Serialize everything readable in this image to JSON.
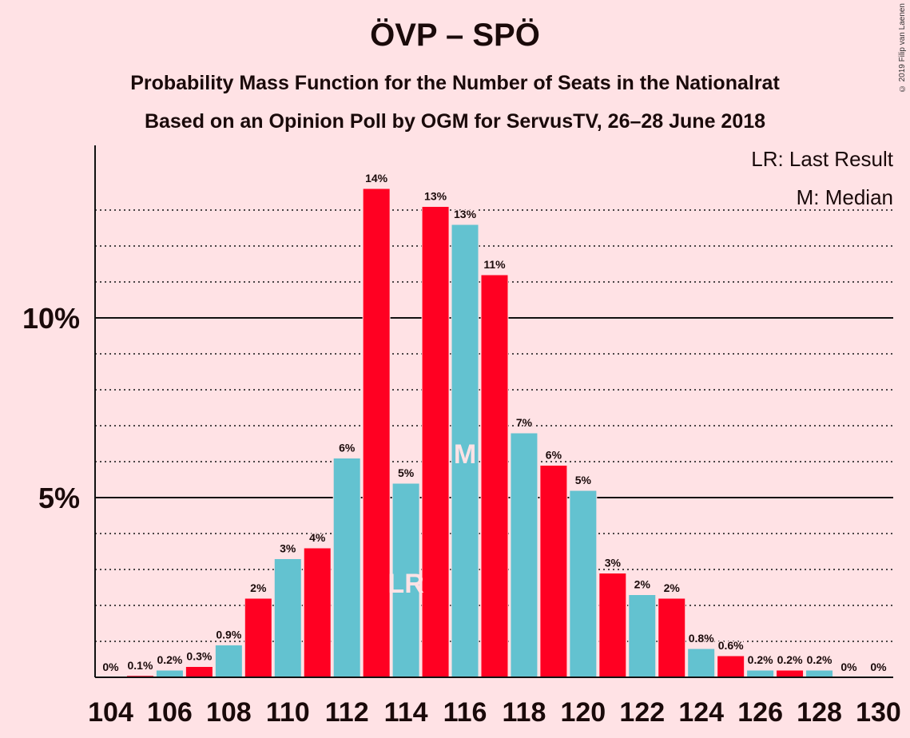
{
  "title": "ÖVP – SPÖ",
  "subtitle1": "Probability Mass Function for the Number of Seats in the Nationalrat",
  "subtitle2": "Based on an Opinion Poll by OGM for ServusTV, 26–28 June 2018",
  "copyright": "© 2019 Filip van Laenen",
  "legend": {
    "last_result": "LR: Last Result",
    "median": "M: Median"
  },
  "colors": {
    "background": "#FFE2E5",
    "red": "#FF0022",
    "blue": "#63C2D0",
    "marker_text": "#FFE2E5"
  },
  "chart_data": {
    "type": "bar",
    "x": [
      104,
      105,
      106,
      107,
      108,
      109,
      110,
      111,
      112,
      113,
      114,
      115,
      116,
      117,
      118,
      119,
      120,
      121,
      122,
      123,
      124,
      125,
      126,
      127,
      128,
      129,
      130
    ],
    "values": [
      0,
      0.05,
      0.2,
      0.3,
      0.9,
      2.2,
      3.3,
      3.6,
      6.1,
      13.6,
      5.4,
      13.1,
      12.6,
      11.2,
      6.8,
      5.9,
      5.2,
      2.9,
      2.3,
      2.2,
      0.8,
      0.6,
      0.2,
      0.2,
      0.2,
      0,
      0
    ],
    "labels": [
      "0%",
      "0.1%",
      "0.2%",
      "0.3%",
      "0.9%",
      "2%",
      "3%",
      "4%",
      "6%",
      "14%",
      "5%",
      "13%",
      "13%",
      "11%",
      "7%",
      "6%",
      "5%",
      "3%",
      "2%",
      "2%",
      "0.8%",
      "0.6%",
      "0.2%",
      "0.2%",
      "0.2%",
      "0%",
      "0%"
    ],
    "bar_colors": [
      "blue",
      "red",
      "blue",
      "red",
      "blue",
      "red",
      "blue",
      "red",
      "blue",
      "red",
      "blue",
      "red",
      "blue",
      "red",
      "blue",
      "red",
      "blue",
      "red",
      "blue",
      "red",
      "blue",
      "red",
      "blue",
      "red",
      "blue",
      "red",
      "blue"
    ],
    "x_ticks": [
      "104",
      "106",
      "108",
      "110",
      "112",
      "114",
      "116",
      "118",
      "120",
      "122",
      "124",
      "126",
      "128",
      "130"
    ],
    "y_ticks": [
      {
        "value": 5,
        "label": "5%"
      },
      {
        "value": 10,
        "label": "10%"
      }
    ],
    "ylim": [
      0,
      14.8
    ],
    "minor_gridlines": [
      1,
      2,
      3,
      4,
      6,
      7,
      8,
      9,
      11,
      12,
      13
    ],
    "markers": [
      {
        "seat": 114,
        "text": "LR"
      },
      {
        "seat": 116,
        "text": "M"
      }
    ]
  }
}
